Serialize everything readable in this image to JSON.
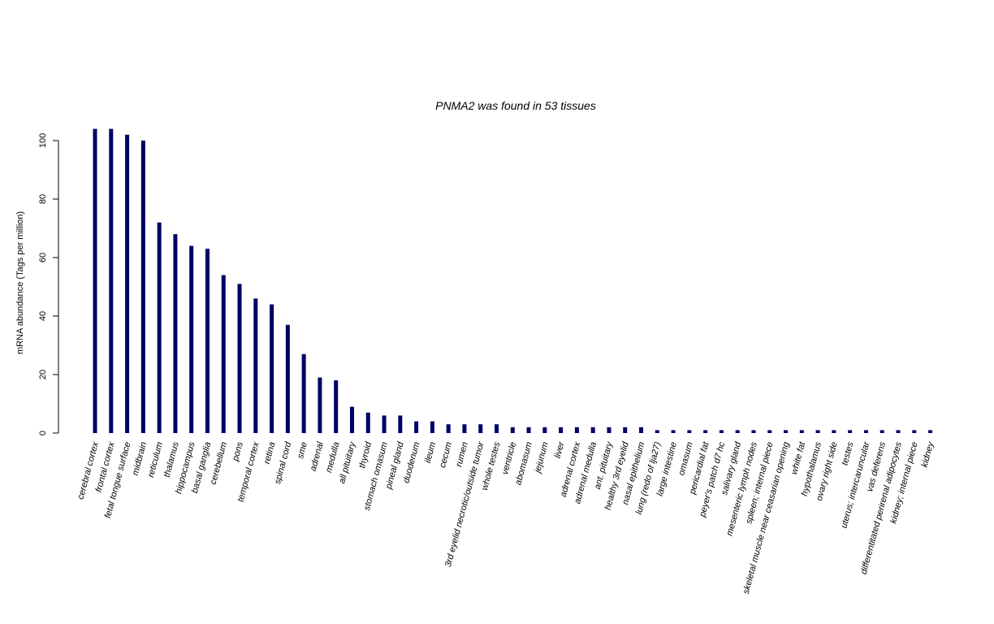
{
  "chart_data": {
    "type": "bar",
    "title": "PNMA2  was found in  53  tissues",
    "ylabel": "mRNA abundance (Tags per million)",
    "xlabel": "",
    "ylim": [
      0,
      108
    ],
    "yticks": [
      0,
      20,
      40,
      60,
      80,
      100
    ],
    "grid": false,
    "bar_color": "#000066",
    "categories": [
      "cerebral cortex",
      "frontal cortex",
      "fetal tongue surface",
      "midbrain",
      "reticulum",
      "thalamus",
      "hippocampus",
      "basal ganglia",
      "cerebellum",
      "pons",
      "temporal cortex",
      "retina",
      "spinal cord",
      "sme",
      "adrenal",
      "medulla",
      "all pituitary",
      "thyroid",
      "stomach omasum",
      "pineal gland",
      "duodenum",
      "ileum",
      "cecum",
      "rumen",
      "3rd eyelid necrotic/outside tumor",
      "whole testes",
      "ventricle",
      "abomasum",
      "jejunum",
      "liver",
      "adrenal cortex",
      "adrenal medulla",
      "ant. pituitary",
      "healthy 3rd eyelid",
      "nasal epithelium",
      "lung (redo of lja27)",
      "large intestine",
      "omasum",
      "pericardial fat",
      "peyer's patch d7 hc",
      "salivary gland",
      "mesenteric lymph nodes",
      "spleen; internal piece",
      "skeletal muscle near ceasarian opening",
      "white fat",
      "hypothalamus",
      "ovary right side",
      "testes",
      "uterus; intercaruncular",
      "vas deferens",
      "differentitated perirenal adipocytes",
      "kidney; internal piece",
      "kidney"
    ],
    "values": [
      104,
      104,
      102,
      100,
      72,
      68,
      64,
      63,
      54,
      51,
      46,
      44,
      37,
      27,
      19,
      18,
      9,
      7,
      6,
      6,
      4,
      4,
      3,
      3,
      3,
      3,
      2,
      2,
      2,
      2,
      2,
      2,
      2,
      2,
      2,
      1,
      1,
      1,
      1,
      1,
      1,
      1,
      1,
      1,
      1,
      1,
      1,
      1,
      1,
      1,
      1,
      1,
      1
    ]
  }
}
